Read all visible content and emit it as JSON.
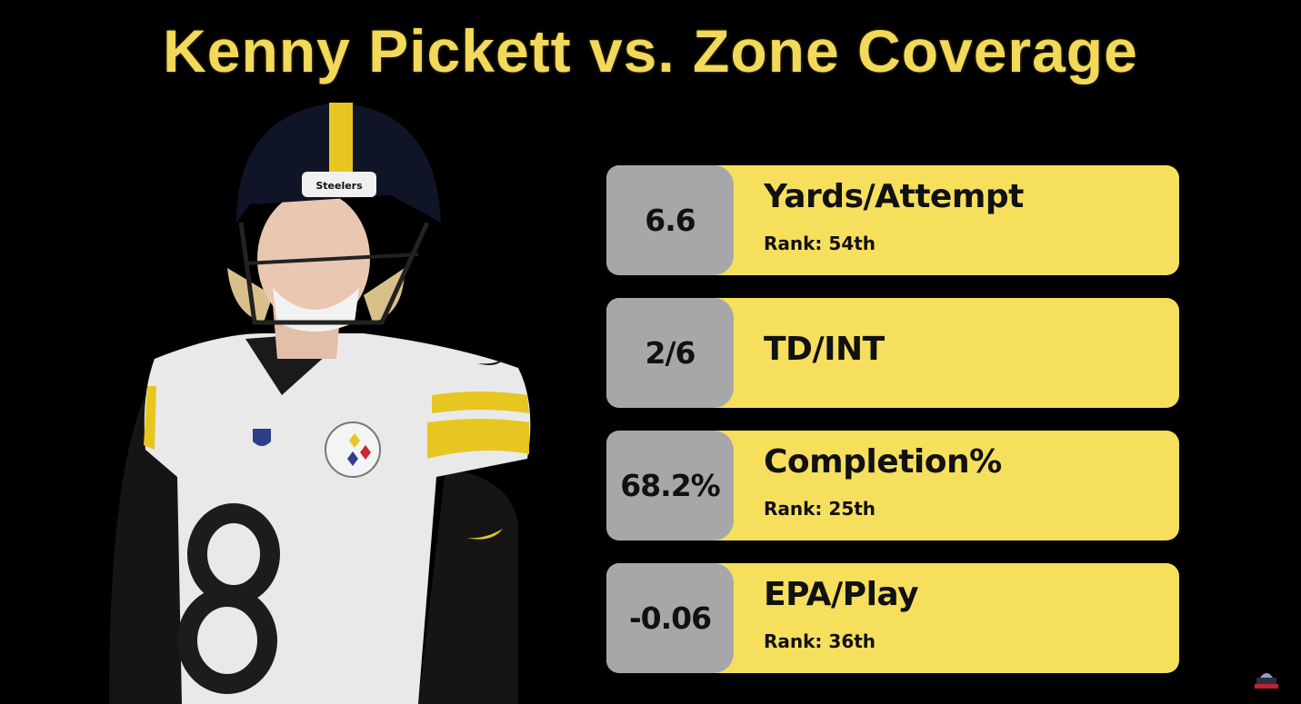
{
  "title": "Kenny Pickett vs. Zone Coverage",
  "colors": {
    "background": "#000000",
    "title": "#f2d95a",
    "card": "#f7df5e",
    "value_box": "#a7a7a9"
  },
  "player": {
    "jersey_number": "8",
    "helmet_text": "Steelers"
  },
  "stats": [
    {
      "value": "6.6",
      "label": "Yards/Attempt",
      "rank": "Rank: 54th"
    },
    {
      "value": "2/6",
      "label": "TD/INT",
      "rank": null
    },
    {
      "value": "68.2%",
      "label": "Completion%",
      "rank": "Rank: 25th"
    },
    {
      "value": "-0.06",
      "label": "EPA/Play",
      "rank": "Rank: 36th"
    }
  ]
}
